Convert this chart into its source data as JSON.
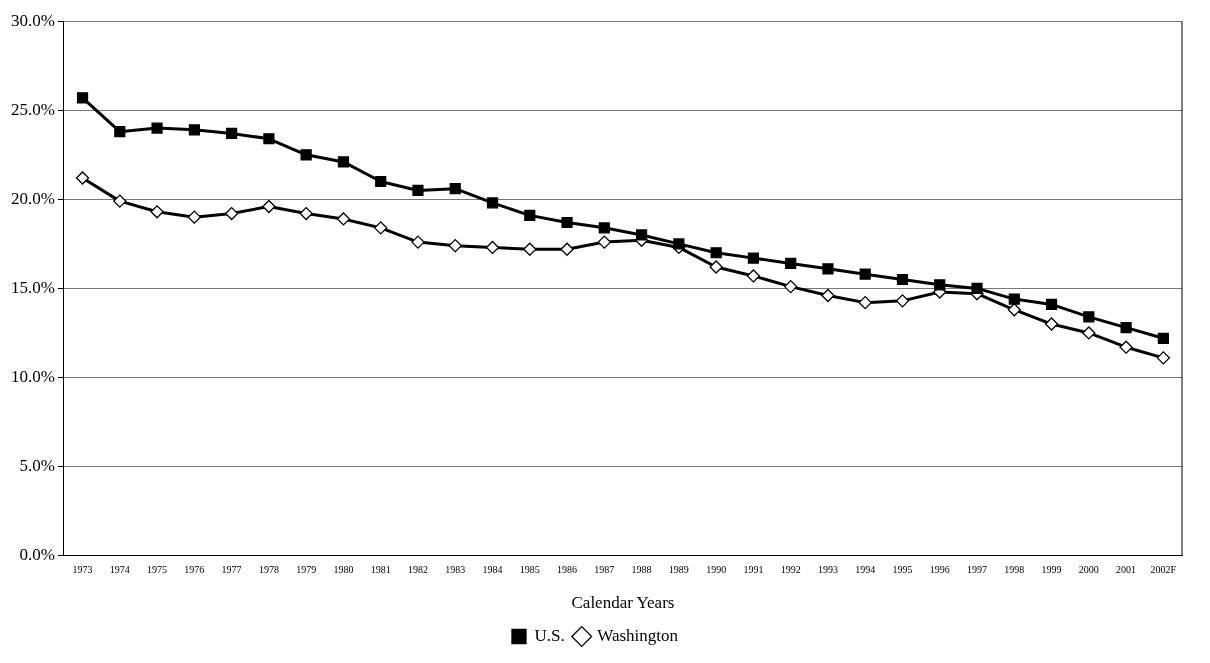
{
  "chart_data": {
    "type": "line",
    "xlabel": "Calendar Years",
    "categories": [
      "1973",
      "1974",
      "1975",
      "1976",
      "1977",
      "1978",
      "1979",
      "1980",
      "1981",
      "1982",
      "1983",
      "1984",
      "1985",
      "1986",
      "1987",
      "1988",
      "1989",
      "1990",
      "1991",
      "1992",
      "1993",
      "1994",
      "1995",
      "1996",
      "1997",
      "1998",
      "1999",
      "2000",
      "2001",
      "2002F"
    ],
    "series": [
      {
        "name": "Washington",
        "color": "#000000",
        "marker": "diamond",
        "values": [
          21.2,
          19.9,
          19.3,
          19.0,
          19.2,
          19.6,
          19.2,
          18.9,
          18.4,
          17.6,
          17.4,
          17.3,
          17.2,
          17.2,
          17.6,
          17.7,
          17.3,
          16.2,
          15.7,
          15.1,
          14.6,
          14.2,
          14.3,
          14.8,
          14.7,
          13.8,
          13.0,
          12.5,
          11.7,
          11.1
        ]
      },
      {
        "name": "U.S.",
        "color": "#000000",
        "marker": "square",
        "values": [
          25.7,
          23.8,
          24.0,
          23.9,
          23.7,
          23.4,
          22.5,
          22.1,
          21.0,
          20.5,
          20.6,
          19.8,
          19.1,
          18.7,
          18.4,
          18.0,
          17.5,
          17.0,
          16.7,
          16.4,
          16.1,
          15.8,
          15.5,
          15.2,
          15.0,
          14.4,
          14.1,
          13.4,
          12.8,
          12.2
        ]
      }
    ],
    "ylim": [
      0,
      30
    ],
    "yticks": [
      {
        "value": 0,
        "label": "0.0%"
      },
      {
        "value": 5,
        "label": "5.0%"
      },
      {
        "value": 10,
        "label": "10.0%"
      },
      {
        "value": 15,
        "label": "15.0%"
      },
      {
        "value": 20,
        "label": "20.0%"
      },
      {
        "value": 25,
        "label": "25.0%"
      },
      {
        "value": 30,
        "label": "30.0%"
      }
    ],
    "grid": "y",
    "legend": "bottom",
    "line_style": "solid"
  }
}
